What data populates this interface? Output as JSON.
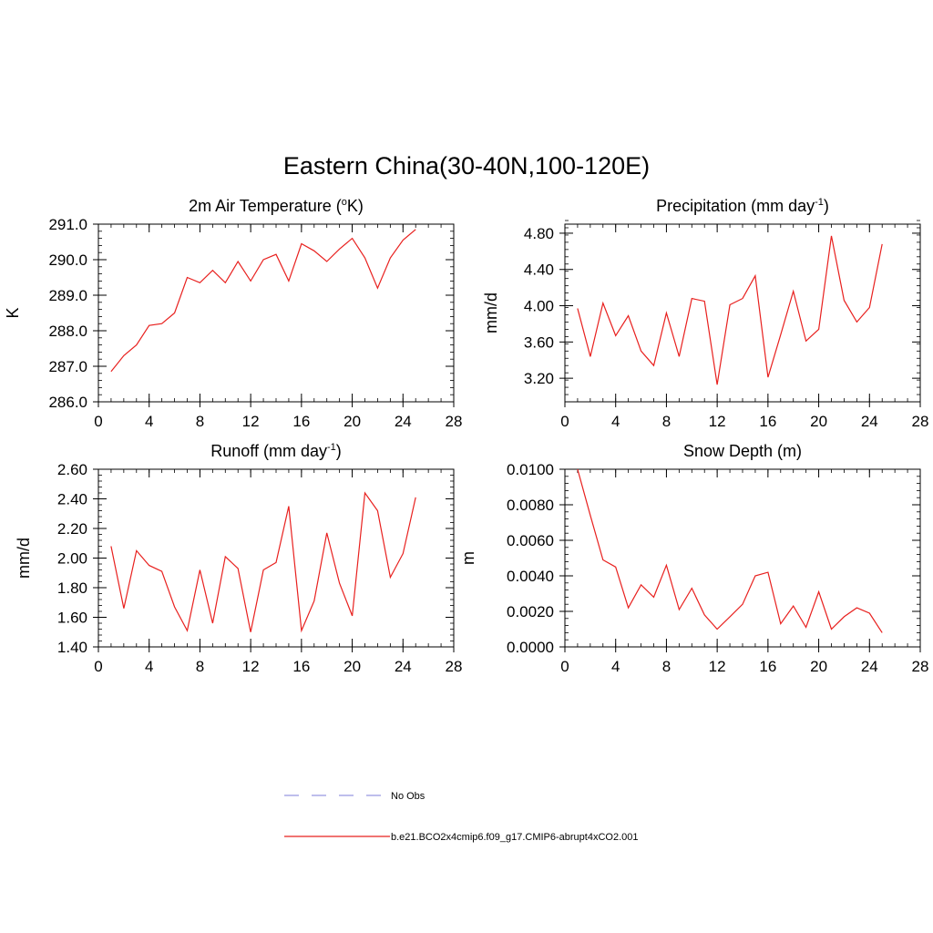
{
  "title": "Eastern China(30-40N,100-120E)",
  "series_color": "#e8201e",
  "obs_color": "#a8a8e6",
  "legend": {
    "obs_label": "No Obs",
    "model_label": "b.e21.BCO2x4cmip6.f09_g17.CMIP6-abrupt4xCO2.001"
  },
  "chart_data": [
    {
      "type": "line",
      "title_text": "2m Air Temperature (",
      "title_sup": "o",
      "title_after": "K)",
      "ylabel": "K",
      "xlim": [
        0,
        28
      ],
      "ylim": [
        286.0,
        291.0
      ],
      "xticks": [
        0,
        4,
        8,
        12,
        16,
        20,
        24,
        28
      ],
      "yticks": [
        286.0,
        287.0,
        288.0,
        289.0,
        290.0,
        291.0
      ],
      "yticklabels": [
        "286.0",
        "287.0",
        "288.0",
        "289.0",
        "290.0",
        "291.0"
      ],
      "xminor": 1,
      "yminor": 0.2,
      "x": [
        1,
        2,
        3,
        4,
        5,
        6,
        7,
        8,
        9,
        10,
        11,
        12,
        13,
        14,
        15,
        16,
        17,
        18,
        19,
        20,
        21,
        22,
        23,
        24,
        25
      ],
      "values": [
        286.85,
        287.3,
        287.6,
        288.15,
        288.2,
        288.5,
        289.5,
        289.35,
        289.7,
        289.35,
        289.95,
        289.4,
        290.0,
        290.15,
        289.4,
        290.45,
        290.25,
        289.95,
        290.3,
        290.6,
        290.05,
        289.2,
        290.05,
        290.55,
        290.85
      ]
    },
    {
      "type": "line",
      "title_text": "Precipitation (mm day",
      "title_sup": "-1",
      "title_after": ")",
      "ylabel": "mm/d",
      "xlim": [
        0,
        28
      ],
      "ylim": [
        2.94,
        4.9
      ],
      "xticks": [
        0,
        4,
        8,
        12,
        16,
        20,
        24,
        28
      ],
      "yticks": [
        3.2,
        3.6,
        4.0,
        4.4,
        4.8
      ],
      "yticklabels": [
        "3.20",
        "3.60",
        "4.00",
        "4.40",
        "4.80"
      ],
      "xminor": 1,
      "yminor": 0.08,
      "x": [
        1,
        2,
        3,
        4,
        5,
        6,
        7,
        8,
        9,
        10,
        11,
        12,
        13,
        14,
        15,
        16,
        17,
        18,
        19,
        20,
        21,
        22,
        23,
        24,
        25
      ],
      "values": [
        3.97,
        3.44,
        4.03,
        3.67,
        3.89,
        3.5,
        3.34,
        3.92,
        3.44,
        4.08,
        4.05,
        3.13,
        4.01,
        4.08,
        4.33,
        3.21,
        3.68,
        4.16,
        3.61,
        3.74,
        4.77,
        4.06,
        3.82,
        3.98,
        4.68
      ]
    },
    {
      "type": "line",
      "title_text": "Runoff (mm day",
      "title_sup": "-1",
      "title_after": ")",
      "ylabel": "mm/d",
      "xlim": [
        0,
        28
      ],
      "ylim": [
        1.4,
        2.6
      ],
      "xticks": [
        0,
        4,
        8,
        12,
        16,
        20,
        24,
        28
      ],
      "yticks": [
        1.4,
        1.6,
        1.8,
        2.0,
        2.2,
        2.4,
        2.6
      ],
      "yticklabels": [
        "1.40",
        "1.60",
        "1.80",
        "2.00",
        "2.20",
        "2.40",
        "2.60"
      ],
      "xminor": 1,
      "yminor": 0.04,
      "x": [
        1,
        2,
        3,
        4,
        5,
        6,
        7,
        8,
        9,
        10,
        11,
        12,
        13,
        14,
        15,
        16,
        17,
        18,
        19,
        20,
        21,
        22,
        23,
        24,
        25
      ],
      "values": [
        2.08,
        1.66,
        2.05,
        1.95,
        1.91,
        1.67,
        1.51,
        1.92,
        1.56,
        2.01,
        1.93,
        1.5,
        1.92,
        1.97,
        2.35,
        1.51,
        1.71,
        2.17,
        1.83,
        1.61,
        2.44,
        2.32,
        1.87,
        2.03,
        2.41
      ]
    },
    {
      "type": "line",
      "title_text": "Snow Depth (m)",
      "title_sup": "",
      "title_after": "",
      "ylabel": "m",
      "xlim": [
        0,
        28
      ],
      "ylim": [
        0.0,
        0.01
      ],
      "xticks": [
        0,
        4,
        8,
        12,
        16,
        20,
        24,
        28
      ],
      "yticks": [
        0.0,
        0.002,
        0.004,
        0.006,
        0.008,
        0.01
      ],
      "yticklabels": [
        "0.0000",
        "0.0020",
        "0.0040",
        "0.0060",
        "0.0080",
        "0.0100"
      ],
      "xminor": 1,
      "yminor": 0.0004,
      "x": [
        1,
        2,
        3,
        4,
        5,
        6,
        7,
        8,
        9,
        10,
        11,
        12,
        13,
        14,
        15,
        16,
        17,
        18,
        19,
        20,
        21,
        22,
        23,
        24,
        25
      ],
      "values": [
        0.01,
        0.0074,
        0.0049,
        0.0045,
        0.0022,
        0.0035,
        0.0028,
        0.0046,
        0.0021,
        0.0033,
        0.0018,
        0.001,
        0.0017,
        0.0024,
        0.004,
        0.0042,
        0.0013,
        0.0023,
        0.0011,
        0.0031,
        0.001,
        0.0017,
        0.0022,
        0.0019,
        0.0008
      ]
    }
  ]
}
